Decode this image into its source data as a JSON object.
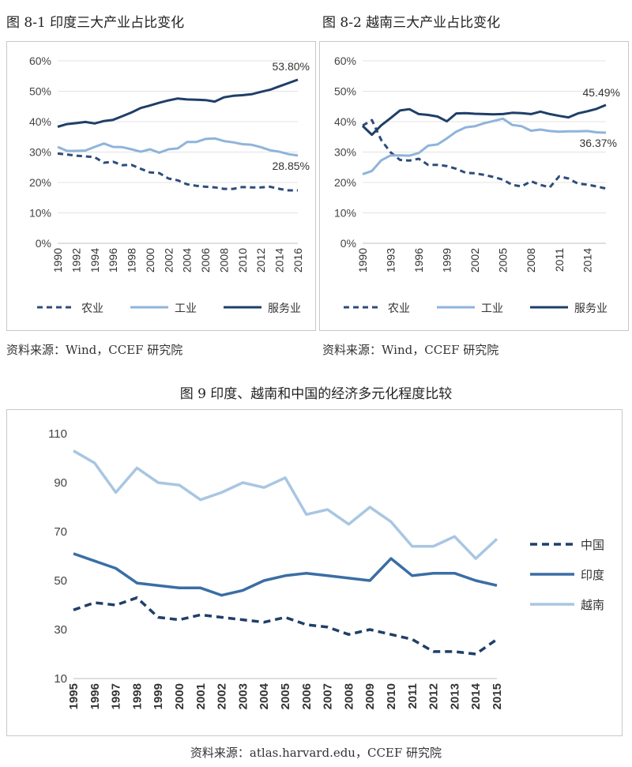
{
  "chart_data": [
    {
      "type": "line",
      "title": "图 8-1  印度三大产业占比变化",
      "source": "资料来源：Wind，CCEF 研究院",
      "ylim": [
        0,
        60
      ],
      "yticks": [
        "0%",
        "10%",
        "20%",
        "30%",
        "40%",
        "50%",
        "60%"
      ],
      "x": [
        1990,
        1991,
        1992,
        1993,
        1994,
        1995,
        1996,
        1997,
        1998,
        1999,
        2000,
        2001,
        2002,
        2003,
        2004,
        2005,
        2006,
        2007,
        2008,
        2009,
        2010,
        2011,
        2012,
        2013,
        2014,
        2015,
        2016
      ],
      "xtick_labels": [
        "1990",
        "1992",
        "1994",
        "1996",
        "1998",
        "2000",
        "2002",
        "2004",
        "2006",
        "2008",
        "2010",
        "2012",
        "2014",
        "2016"
      ],
      "legend_position": "bottom",
      "series": [
        {
          "name": "农业",
          "style": "dashed",
          "color": "#2e4d7a",
          "values": [
            29.5,
            29.2,
            28.8,
            28.6,
            28.3,
            26.5,
            26.8,
            25.7,
            25.8,
            24.5,
            23.3,
            23.1,
            21.3,
            20.7,
            19.4,
            18.9,
            18.6,
            18.4,
            17.9,
            17.9,
            18.5,
            18.4,
            18.4,
            18.6,
            17.9,
            17.4,
            17.4
          ]
        },
        {
          "name": "工业",
          "style": "solid",
          "color": "#8fb4da",
          "values": [
            31.7,
            30.4,
            30.4,
            30.5,
            31.7,
            32.8,
            31.7,
            31.6,
            30.9,
            30.1,
            30.9,
            29.8,
            30.9,
            31.2,
            33.3,
            33.3,
            34.3,
            34.5,
            33.6,
            33.2,
            32.6,
            32.4,
            31.6,
            30.6,
            30.1,
            29.3,
            28.85
          ]
        },
        {
          "name": "服务业",
          "style": "solid",
          "color": "#1f3f68",
          "values": [
            38.3,
            39.2,
            39.5,
            39.9,
            39.4,
            40.2,
            40.6,
            41.8,
            43.0,
            44.5,
            45.3,
            46.2,
            47.0,
            47.6,
            47.3,
            47.2,
            47.1,
            46.6,
            48.0,
            48.5,
            48.7,
            49.0,
            49.8,
            50.5,
            51.6,
            52.7,
            53.8
          ]
        }
      ],
      "annotations": [
        {
          "series": "服务业",
          "text": "53.80%"
        },
        {
          "series": "工业",
          "text": "28.85%"
        }
      ]
    },
    {
      "type": "line",
      "title": "图 8-2  越南三大产业占比变化",
      "source": "资料来源：Wind，CCEF 研究院",
      "ylim": [
        0,
        60
      ],
      "yticks": [
        "0%",
        "10%",
        "20%",
        "30%",
        "40%",
        "50%",
        "60%"
      ],
      "x": [
        1990,
        1991,
        1992,
        1993,
        1994,
        1995,
        1996,
        1997,
        1998,
        1999,
        2000,
        2001,
        2002,
        2003,
        2004,
        2005,
        2006,
        2007,
        2008,
        2009,
        2010,
        2011,
        2012,
        2013,
        2014,
        2015,
        2016
      ],
      "xtick_labels": [
        "1990",
        "1993",
        "1996",
        "1999",
        "2002",
        "2005",
        "2008",
        "2011",
        "2014"
      ],
      "legend_position": "bottom",
      "series": [
        {
          "name": "农业",
          "style": "dashed",
          "color": "#2e4d7a",
          "values": [
            38.7,
            40.5,
            33.9,
            29.9,
            27.4,
            27.2,
            27.8,
            25.8,
            25.8,
            25.4,
            24.5,
            23.2,
            23.0,
            22.5,
            21.8,
            20.9,
            19.2,
            18.7,
            20.4,
            19.2,
            18.4,
            22.0,
            21.3,
            19.6,
            19.3,
            18.7,
            18.0
          ]
        },
        {
          "name": "工业",
          "style": "solid",
          "color": "#8fb4da",
          "values": [
            22.7,
            23.8,
            27.3,
            28.9,
            28.9,
            28.8,
            29.7,
            32.1,
            32.5,
            34.5,
            36.7,
            38.1,
            38.5,
            39.5,
            40.2,
            41.0,
            38.9,
            38.5,
            37.0,
            37.4,
            36.9,
            36.7,
            36.8,
            36.8,
            36.9,
            36.5,
            36.37
          ]
        },
        {
          "name": "服务业",
          "style": "solid",
          "color": "#1f3f68",
          "values": [
            38.6,
            35.7,
            38.8,
            41.2,
            43.7,
            44.1,
            42.5,
            42.2,
            41.7,
            40.1,
            42.7,
            42.8,
            42.6,
            42.5,
            42.4,
            42.5,
            42.9,
            42.8,
            42.5,
            43.3,
            42.5,
            41.9,
            41.4,
            42.7,
            43.4,
            44.2,
            45.49
          ]
        }
      ],
      "annotations": [
        {
          "series": "服务业",
          "text": "45.49%"
        },
        {
          "series": "工业",
          "text": "36.37%"
        }
      ]
    },
    {
      "type": "line",
      "title": "图 9  印度、越南和中国的经济多元化程度比较",
      "source": "资料来源：atlas.harvard.edu，CCEF 研究院",
      "ylim": [
        10,
        110
      ],
      "yticks": [
        "10",
        "30",
        "50",
        "70",
        "90",
        "110"
      ],
      "x": [
        1995,
        1996,
        1997,
        1998,
        1999,
        2000,
        2001,
        2002,
        2003,
        2004,
        2005,
        2006,
        2007,
        2008,
        2009,
        2010,
        2011,
        2012,
        2013,
        2014,
        2015
      ],
      "xtick_labels": [
        "1995",
        "1996",
        "1997",
        "1998",
        "1999",
        "2000",
        "2001",
        "2002",
        "2003",
        "2004",
        "2005",
        "2006",
        "2007",
        "2008",
        "2009",
        "2010",
        "2011",
        "2012",
        "2013",
        "2014",
        "2015"
      ],
      "legend_position": "right",
      "series": [
        {
          "name": "中国",
          "style": "dashed",
          "color": "#1f3f68",
          "values": [
            38,
            41,
            40,
            43,
            35,
            34,
            36,
            35,
            34,
            33,
            35,
            32,
            31,
            28,
            30,
            28,
            26,
            21,
            21,
            20,
            26
          ]
        },
        {
          "name": "印度",
          "style": "solid",
          "color": "#3a6ea5",
          "values": [
            61,
            58,
            55,
            49,
            48,
            47,
            47,
            44,
            46,
            50,
            52,
            53,
            52,
            51,
            50,
            59,
            52,
            53,
            53,
            50,
            48
          ]
        },
        {
          "name": "越南",
          "style": "solid",
          "color": "#a9c6e2",
          "values": [
            103,
            98,
            86,
            96,
            90,
            89,
            83,
            86,
            90,
            88,
            92,
            77,
            79,
            73,
            80,
            74,
            64,
            64,
            68,
            59,
            67
          ]
        }
      ]
    }
  ]
}
